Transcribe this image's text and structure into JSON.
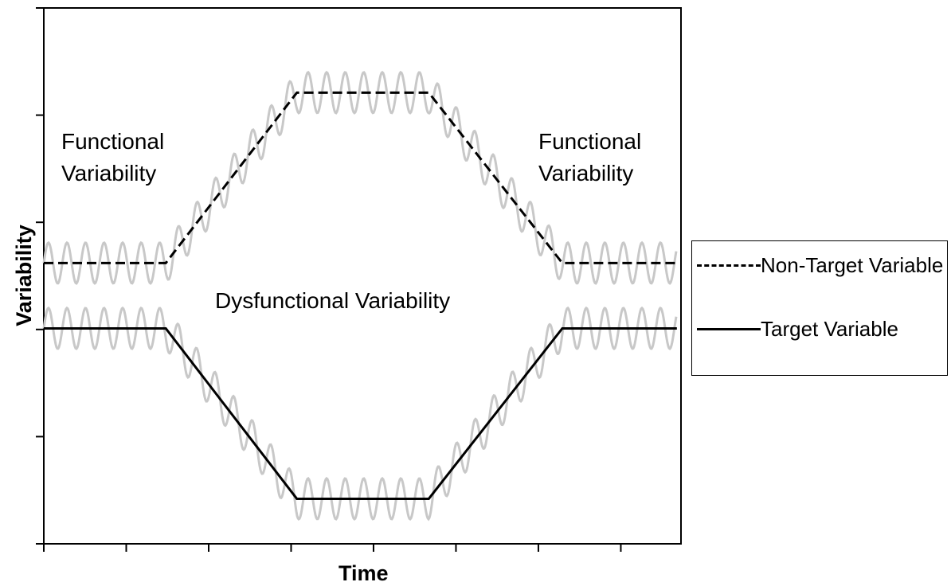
{
  "chart_data": {
    "type": "line",
    "x_label": "Time",
    "y_label": "Variability",
    "annotations": [
      "Functional Variability",
      "Functional Variability",
      "Dysfunctional Variability"
    ],
    "x": [
      0,
      1.48,
      3.07,
      4.67,
      6.29,
      7.68
    ],
    "xlim": [
      0,
      7.73
    ],
    "xticks": [
      0,
      1,
      2,
      3,
      4,
      5,
      6,
      7
    ],
    "ylim": [
      0,
      5
    ],
    "yticks": [
      0,
      1,
      2,
      3,
      4,
      5
    ],
    "series": [
      {
        "name": "Non-Target Variable",
        "color": "#000000",
        "dash": "dashed",
        "values": [
          2.62,
          2.62,
          4.21,
          4.21,
          2.62,
          2.62
        ],
        "oscillation": {
          "color": "#c8c8c8",
          "amplitude": 0.19,
          "period": 0.225
        }
      },
      {
        "name": "Target Variable",
        "color": "#000000",
        "dash": "solid",
        "values": [
          2.01,
          2.01,
          0.42,
          0.42,
          2.01,
          2.01
        ],
        "oscillation": {
          "color": "#c8c8c8",
          "amplitude": 0.19,
          "period": 0.225
        }
      }
    ],
    "legend": "right"
  }
}
